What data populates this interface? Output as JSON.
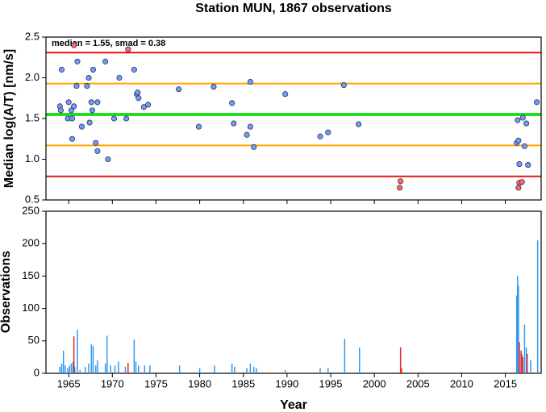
{
  "chart_data": [
    {
      "type": "scatter",
      "title": "Station MUN, 1867 observations",
      "ylabel": "Median log(A/T) [nm/s]",
      "annotation": "median = 1.55, smad = 0.38",
      "xlim": [
        1962.4,
        2019.1
      ],
      "ylim": [
        0.5,
        2.5
      ],
      "yticks": [
        0.5,
        {
          "value": 1,
          "label": "1.0"
        },
        1.5,
        {
          "value": 2,
          "label": "2.0"
        },
        2.5
      ],
      "hlines": [
        {
          "value": 2.31,
          "color": "#ee1111"
        },
        {
          "value": 1.93,
          "color": "#ffa500"
        },
        {
          "value": 1.55,
          "color": "#22dd22"
        },
        {
          "value": 1.17,
          "color": "#ffa500"
        },
        {
          "value": 0.79,
          "color": "#ee1111"
        }
      ],
      "series": [
        {
          "color": "#6f9bf5",
          "x": [
            1964.2,
            1964.0,
            1964.1,
            1965.0,
            1964.9,
            1965.3,
            1965.4,
            1965.6,
            1965.4,
            1965.9,
            1966.0,
            1966.5,
            1967.1,
            1967.3,
            1967.4,
            1967.6,
            1967.7,
            1967.8,
            1968.1,
            1968.3,
            1968.3,
            1969.2,
            1969.5,
            1970.2,
            1970.8,
            1971.6,
            1972.5,
            1972.8,
            1972.9,
            1973.0,
            1973.6,
            1974.1,
            1977.6,
            1979.9,
            1981.6,
            1983.7,
            1983.9,
            1985.4,
            1985.8,
            1985.8,
            1986.2,
            1989.8,
            1993.8,
            1994.7,
            1996.5,
            1998.2,
            2016.4,
            2016.3,
            2016.5,
            2016.6,
            2017.0,
            2017.2,
            2017.4,
            2017.6,
            2018.6
          ],
          "values": [
            2.1,
            1.65,
            1.6,
            1.7,
            1.5,
            1.6,
            1.5,
            1.65,
            1.25,
            1.9,
            2.2,
            1.4,
            1.9,
            2.0,
            1.45,
            1.7,
            1.6,
            2.1,
            1.2,
            1.7,
            1.1,
            2.2,
            1.0,
            1.5,
            2.0,
            1.5,
            2.1,
            1.8,
            1.82,
            1.75,
            1.64,
            1.67,
            1.86,
            1.4,
            1.89,
            1.69,
            1.44,
            1.3,
            1.4,
            1.95,
            1.15,
            1.8,
            1.28,
            1.33,
            1.91,
            1.43,
            1.48,
            1.2,
            1.23,
            0.94,
            1.51,
            1.16,
            1.44,
            0.93,
            1.7
          ]
        },
        {
          "color": "#ff6666",
          "x": [
            1965.6,
            1971.8,
            2003.0,
            2002.9,
            2016.5,
            2016.6,
            2016.9
          ],
          "values": [
            2.4,
            2.35,
            0.73,
            0.65,
            0.65,
            0.71,
            0.72
          ]
        }
      ]
    },
    {
      "type": "bar",
      "xlabel": "Year",
      "ylabel": "Observations",
      "xlim": [
        1962.4,
        2019.1
      ],
      "ylim": [
        0,
        250
      ],
      "xticks": [
        1965,
        1970,
        1975,
        1980,
        1985,
        1990,
        1995,
        2000,
        2005,
        2010,
        2015
      ],
      "yticks": [
        0,
        50,
        100,
        150,
        200,
        250
      ],
      "series": [
        {
          "color": "#3399ee",
          "x": [
            1964.0,
            1964.2,
            1964.4,
            1964.6,
            1964.9,
            1965.1,
            1965.3,
            1965.5,
            1965.7,
            1966.0,
            1966.3,
            1966.9,
            1967.3,
            1967.6,
            1967.8,
            1968.1,
            1968.3,
            1969.2,
            1969.4,
            1969.8,
            1970.3,
            1970.7,
            1971.5,
            1972.5,
            1972.7,
            1973.0,
            1973.7,
            1974.3,
            1977.7,
            1980.0,
            1981.7,
            1983.7,
            1984.0,
            1985.4,
            1985.8,
            1986.2,
            1986.5,
            1989.8,
            1993.8,
            1994.7,
            1996.6,
            1998.3,
            2016.3,
            2016.4,
            2016.5,
            2016.9,
            2017.2,
            2017.4,
            2017.9,
            2018.7
          ],
          "values": [
            10,
            15,
            35,
            12,
            8,
            12,
            15,
            18,
            10,
            67,
            5,
            10,
            15,
            45,
            42,
            12,
            20,
            15,
            58,
            12,
            12,
            18,
            10,
            52,
            18,
            12,
            12,
            12,
            12,
            8,
            12,
            15,
            10,
            8,
            15,
            10,
            8,
            5,
            8,
            8,
            53,
            40,
            120,
            150,
            135,
            30,
            75,
            40,
            20,
            205
          ]
        },
        {
          "color": "#ee2222",
          "x": [
            1965.6,
            1971.8,
            2003.0,
            2003.1,
            2016.6,
            2016.8,
            2017.0,
            2017.5
          ],
          "values": [
            57,
            16,
            40,
            8,
            48,
            35,
            25,
            30
          ]
        }
      ]
    }
  ]
}
